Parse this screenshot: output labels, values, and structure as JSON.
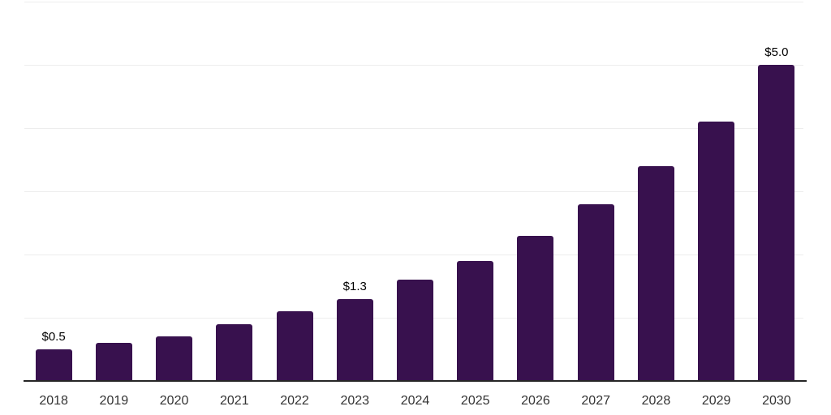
{
  "chart_data": {
    "type": "bar",
    "title": "",
    "xlabel": "",
    "ylabel": "",
    "categories": [
      "2018",
      "2019",
      "2020",
      "2021",
      "2022",
      "2023",
      "2024",
      "2025",
      "2026",
      "2027",
      "2028",
      "2029",
      "2030"
    ],
    "values": [
      0.5,
      0.6,
      0.7,
      0.9,
      1.1,
      1.3,
      1.6,
      1.9,
      2.3,
      2.8,
      3.4,
      4.1,
      5.0
    ],
    "data_labels": [
      "$0.5",
      "",
      "",
      "",
      "",
      "$1.3",
      "",
      "",
      "",
      "",
      "",
      "",
      "$5.0"
    ],
    "ylim": [
      0,
      6
    ],
    "gridline_step": 1,
    "grid": "horizontal",
    "legend": "none",
    "colors": {
      "bar": "#38114E",
      "axis_line": "#262626",
      "gridline": "#ededed",
      "tick_label": "#333333",
      "data_label": "#000000",
      "background": "#ffffff"
    }
  }
}
